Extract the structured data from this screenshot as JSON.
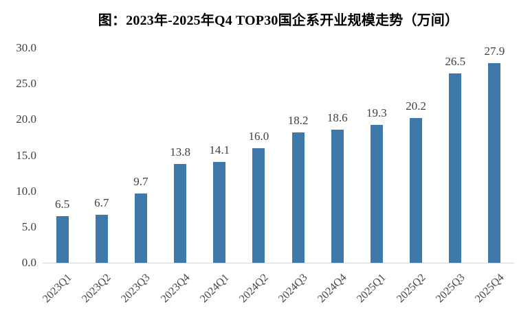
{
  "chart_data": {
    "type": "bar",
    "title": "图：2023年-2025年Q4 TOP30国企系开业规模走势（万间）",
    "categories": [
      "2023Q1",
      "2023Q2",
      "2023Q3",
      "2023Q4",
      "2024Q1",
      "2024Q2",
      "2024Q3",
      "2024Q4",
      "2025Q1",
      "2025Q2",
      "2025Q3",
      "2025Q4"
    ],
    "values": [
      6.5,
      6.7,
      9.7,
      13.8,
      14.1,
      16.0,
      18.2,
      18.6,
      19.3,
      20.2,
      26.5,
      27.9
    ],
    "xlabel": "",
    "ylabel": "",
    "ylim": [
      0,
      30
    ],
    "ytick_step": 5,
    "ytick_decimals": 1,
    "value_label_decimals": 1,
    "grid": "off",
    "legend": "none",
    "colors": {
      "bar": "#3f79a9",
      "axis_line": "#d6d6d6",
      "tick_label": "#404040",
      "title": "#000000"
    }
  }
}
